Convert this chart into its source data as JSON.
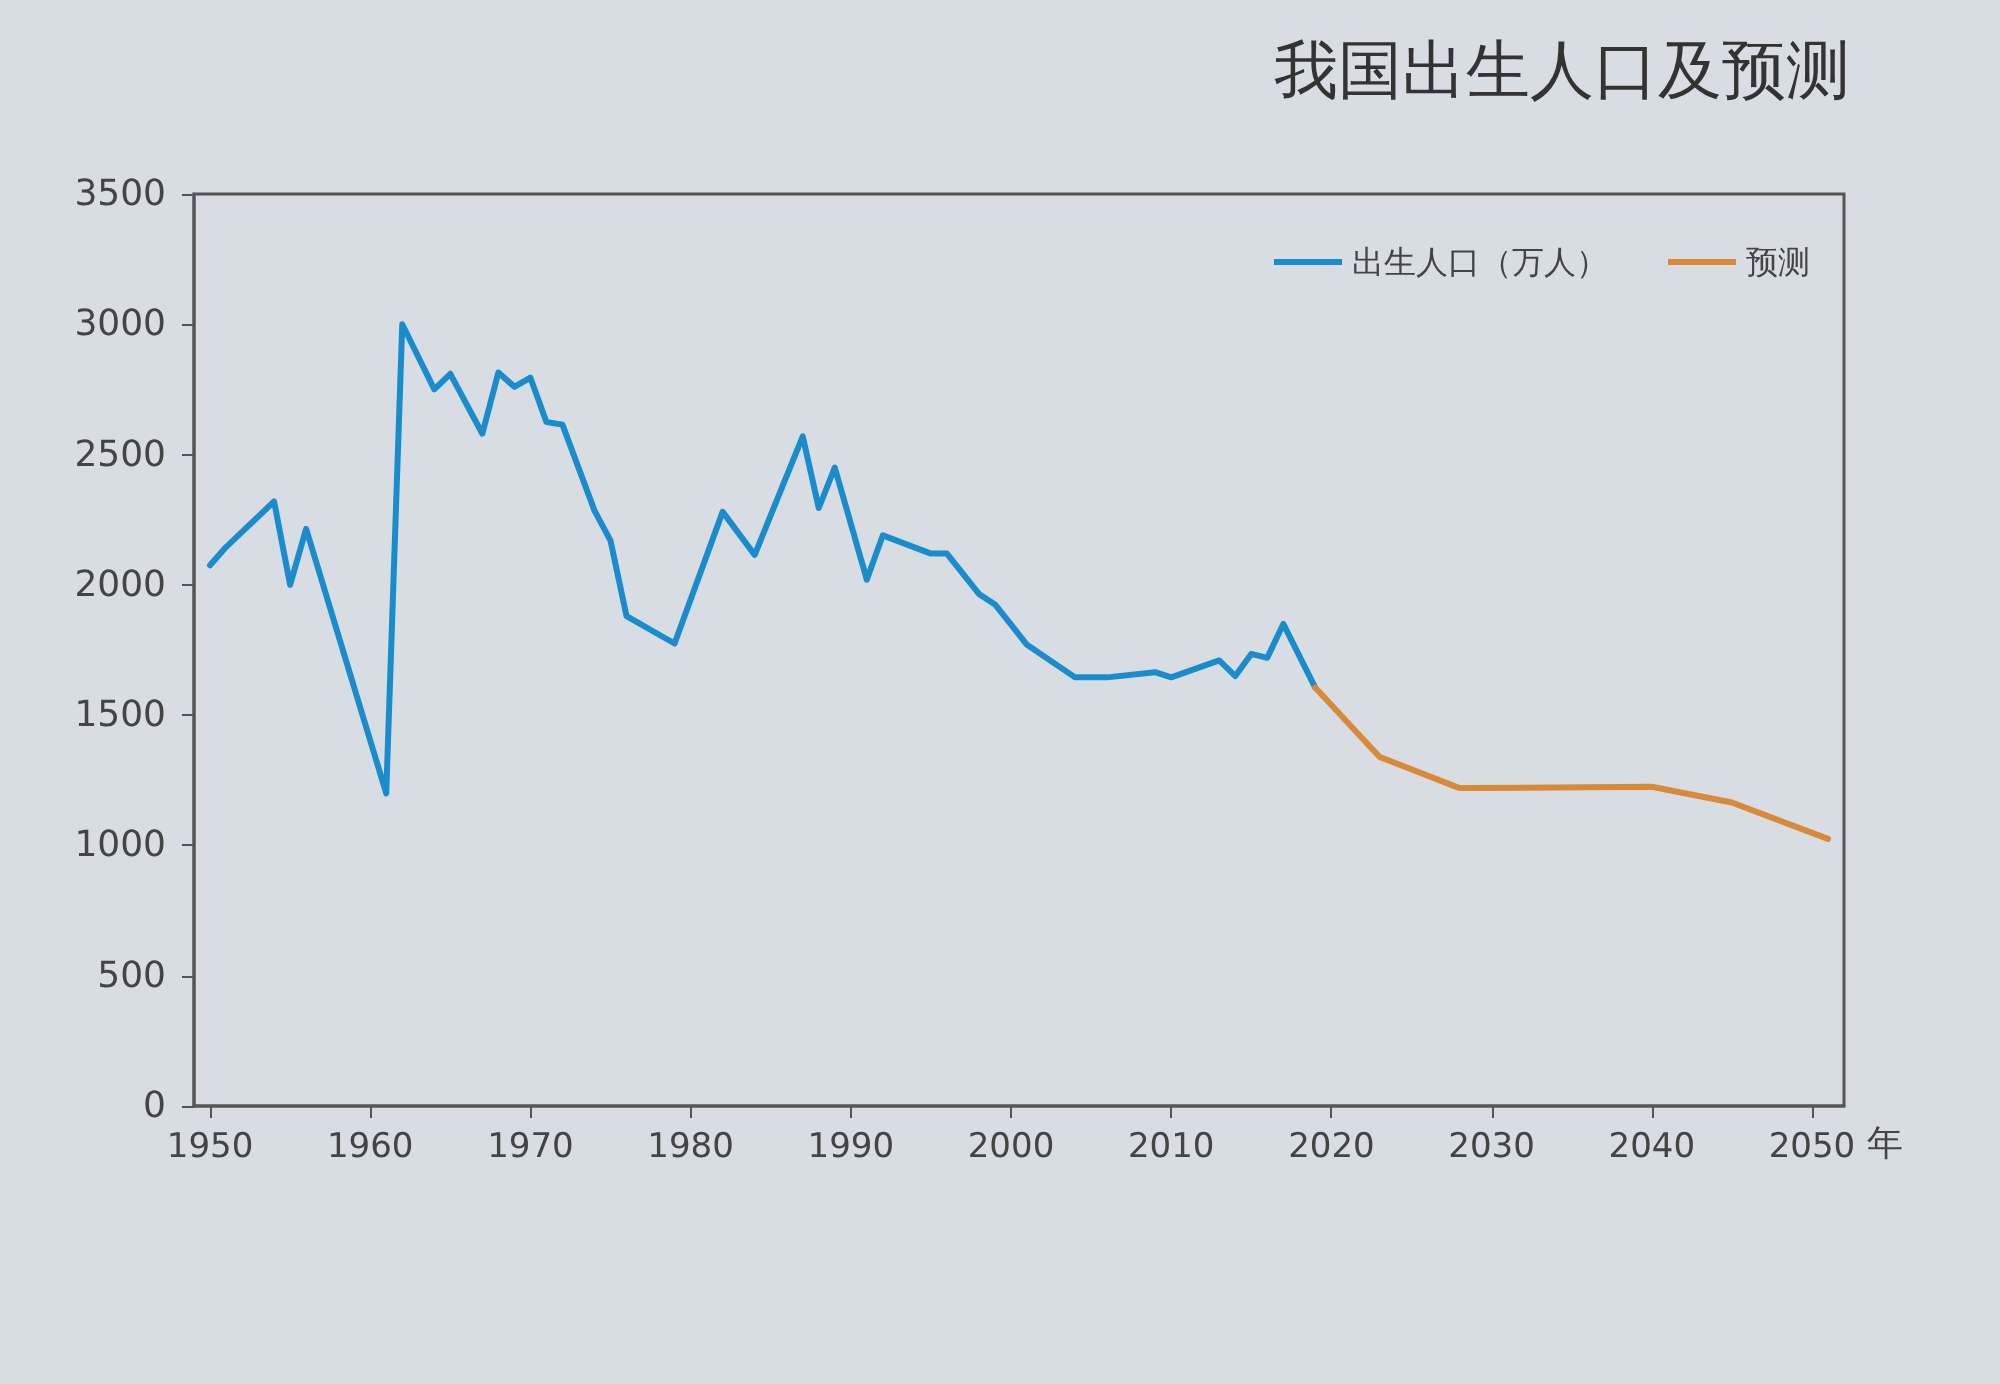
{
  "chart_data": {
    "type": "line",
    "title": "我国出生人口及预测",
    "xlabel": "年",
    "series": [
      {
        "name": "出生人口（万人）",
        "color": "#1a8ccc",
        "x": [
          1950,
          1951,
          1954,
          1955,
          1956,
          1961,
          1962,
          1964,
          1965,
          1967,
          1968,
          1969,
          1970,
          1971,
          1972,
          1974,
          1975,
          1976,
          1979,
          1982,
          1984,
          1987,
          1988,
          1989,
          1991,
          1992,
          1995,
          1996,
          1998,
          1999,
          2001,
          2004,
          2006,
          2009,
          2010,
          2013,
          2014,
          2015,
          2016,
          2017,
          2019
        ],
        "values": [
          2075,
          2145,
          2320,
          2000,
          2215,
          1200,
          3000,
          2750,
          2810,
          2580,
          2815,
          2760,
          2795,
          2625,
          2615,
          2285,
          2170,
          1880,
          1775,
          2280,
          2115,
          2570,
          2295,
          2450,
          2020,
          2190,
          2120,
          2120,
          1965,
          1925,
          1770,
          1645,
          1645,
          1665,
          1645,
          1710,
          1650,
          1735,
          1720,
          1850,
          1605
        ]
      },
      {
        "name": "预测",
        "color": "#d9893a",
        "x": [
          2019,
          2023,
          2028,
          2040,
          2045,
          2051
        ],
        "values": [
          1605,
          1340,
          1220,
          1225,
          1165,
          1025
        ]
      }
    ],
    "xlim": [
      1949,
      2052
    ],
    "xticks": [
      1950,
      1960,
      1970,
      1980,
      1990,
      2000,
      2010,
      2020,
      2030,
      2040,
      2050
    ],
    "ylim": [
      0,
      3500
    ],
    "yticks": [
      0,
      500,
      1000,
      1500,
      2000,
      2500,
      3000,
      3500
    ],
    "grid": false,
    "legend": "top right",
    "marker": "none",
    "line_style": "solid"
  }
}
